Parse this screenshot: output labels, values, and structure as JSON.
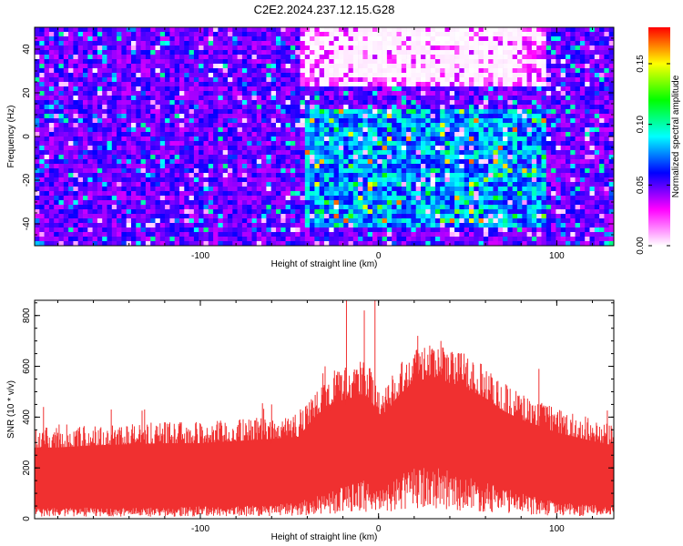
{
  "title": "C2E2.2024.237.12.15.G28",
  "colorbar": {
    "label": "Normalized spectral amplitude",
    "ticks": [
      "0.00",
      "0.05",
      "0.10",
      "0.15"
    ],
    "tick_values": [
      0.0,
      0.05,
      0.1,
      0.15
    ],
    "range": [
      0.0,
      0.18
    ],
    "colors": [
      "#ffffff",
      "#ff00ff",
      "#0000ff",
      "#00ffff",
      "#00ff00",
      "#ffff00",
      "#ff0000"
    ]
  },
  "chart_data": [
    {
      "type": "heatmap",
      "xlabel": "Height of straight line (km)",
      "ylabel": "Frequency (Hz)",
      "xlim": [
        -193,
        132
      ],
      "ylim": [
        -50,
        50
      ],
      "xticks": [
        -100,
        0,
        100
      ],
      "yticks": [
        -40,
        -20,
        0,
        20,
        40
      ],
      "value_range": [
        0.0,
        0.18
      ],
      "features": [
        {
          "region": "x -193..132, f -50..50",
          "typical_amplitude": 0.04
        },
        {
          "region": "x -40..90, f -40..10",
          "typical_amplitude": 0.08,
          "peak_amplitude": 0.16
        },
        {
          "region": "x -40..90, f 25..50",
          "typical_amplitude": 0.0
        }
      ]
    },
    {
      "type": "area",
      "xlabel": "Height of straight line (km)",
      "ylabel": "SNR (10 * v/v)",
      "xlim": [
        -193,
        132
      ],
      "ylim": [
        0,
        860
      ],
      "xticks": [
        -100,
        0,
        100
      ],
      "yticks": [
        0,
        200,
        400,
        600,
        800
      ],
      "series": [
        {
          "color": "#f03030",
          "x": [
            -193,
            -180,
            -160,
            -140,
            -120,
            -100,
            -80,
            -60,
            -45,
            -35,
            -25,
            -15,
            -10,
            -5,
            0,
            5,
            10,
            20,
            30,
            40,
            50,
            60,
            70,
            80,
            90,
            100,
            110,
            120,
            132
          ],
          "upper": [
            330,
            330,
            340,
            345,
            350,
            350,
            360,
            370,
            380,
            480,
            540,
            560,
            580,
            560,
            480,
            500,
            560,
            640,
            650,
            630,
            600,
            560,
            500,
            460,
            430,
            400,
            380,
            360,
            340
          ],
          "lower": [
            40,
            40,
            40,
            40,
            40,
            45,
            45,
            50,
            60,
            80,
            100,
            130,
            140,
            130,
            100,
            120,
            150,
            180,
            190,
            170,
            150,
            130,
            110,
            90,
            75,
            60,
            55,
            50,
            50
          ],
          "spikes": [
            [
              -188,
              440
            ],
            [
              -150,
              430
            ],
            [
              -60,
              450
            ],
            [
              -30,
              600
            ],
            [
              -18,
              860
            ],
            [
              -8,
              820
            ],
            [
              -2,
              860
            ],
            [
              22,
              720
            ],
            [
              35,
              700
            ],
            [
              48,
              650
            ],
            [
              90,
              590
            ]
          ]
        }
      ]
    }
  ]
}
